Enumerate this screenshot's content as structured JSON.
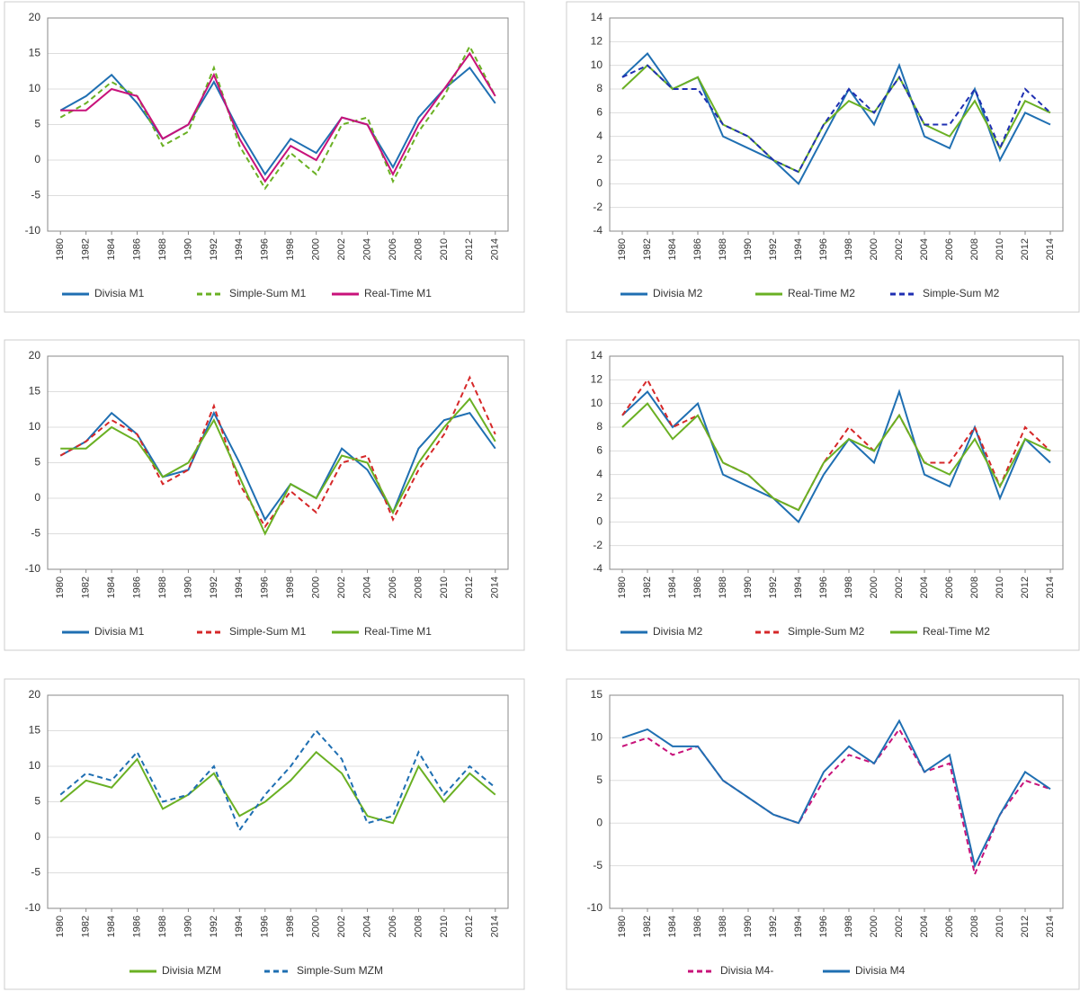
{
  "chart_data": [
    {
      "type": "line",
      "xlim": [
        1979,
        2015
      ],
      "xticks": [
        1980,
        1982,
        1984,
        1986,
        1988,
        1990,
        1992,
        1994,
        1996,
        1998,
        2000,
        2002,
        2004,
        2006,
        2008,
        2010,
        2012,
        2014
      ],
      "ylim": [
        -10,
        20
      ],
      "yticks": [
        -10,
        -5,
        0,
        5,
        10,
        15,
        20
      ],
      "x": [
        1980,
        1982,
        1984,
        1986,
        1988,
        1990,
        1992,
        1994,
        1996,
        1998,
        2000,
        2002,
        2004,
        2006,
        2008,
        2010,
        2012,
        2014
      ],
      "series": [
        {
          "name": "Divisia M1",
          "color": "#1f6fb2",
          "style": "solid",
          "values": [
            7,
            9,
            12,
            8,
            3,
            5,
            11,
            4,
            -2,
            3,
            1,
            6,
            5,
            -1,
            6,
            10,
            13,
            8
          ]
        },
        {
          "name": "Simple-Sum M1",
          "color": "#6ab023",
          "style": "dashed",
          "values": [
            6,
            8,
            11,
            9,
            2,
            4,
            13,
            2,
            -4,
            1,
            -2,
            5,
            6,
            -3,
            4,
            9,
            16,
            9
          ]
        },
        {
          "name": "Real-Time M1",
          "color": "#c8127a",
          "style": "solid",
          "values": [
            7,
            7,
            10,
            9,
            3,
            5,
            12,
            3,
            -3,
            2,
            0,
            6,
            5,
            -2,
            5,
            10,
            15,
            9
          ]
        }
      ]
    },
    {
      "type": "line",
      "xlim": [
        1979,
        2015
      ],
      "xticks": [
        1980,
        1982,
        1984,
        1986,
        1988,
        1990,
        1992,
        1994,
        1996,
        1998,
        2000,
        2002,
        2004,
        2006,
        2008,
        2010,
        2012,
        2014
      ],
      "ylim": [
        -4,
        14
      ],
      "yticks": [
        -4,
        -2,
        0,
        2,
        4,
        6,
        8,
        10,
        12,
        14
      ],
      "x": [
        1980,
        1982,
        1984,
        1986,
        1988,
        1990,
        1992,
        1994,
        1996,
        1998,
        2000,
        2002,
        2004,
        2006,
        2008,
        2010,
        2012,
        2014
      ],
      "series": [
        {
          "name": "Divisia M2",
          "color": "#1f6fb2",
          "style": "solid",
          "values": [
            9,
            11,
            8,
            9,
            4,
            3,
            2,
            0,
            4,
            8,
            5,
            10,
            4,
            3,
            8,
            2,
            6,
            5
          ]
        },
        {
          "name": "Real-Time M2",
          "color": "#6ab023",
          "style": "solid",
          "values": [
            8,
            10,
            8,
            9,
            5,
            4,
            2,
            1,
            5,
            7,
            6,
            9,
            5,
            4,
            7,
            3,
            7,
            6
          ]
        },
        {
          "name": "Simple-Sum M2",
          "color": "#1f2fb2",
          "style": "dashed",
          "values": [
            9,
            10,
            8,
            8,
            5,
            4,
            2,
            1,
            5,
            8,
            6,
            9,
            5,
            5,
            8,
            3,
            8,
            6
          ]
        }
      ]
    },
    {
      "type": "line",
      "xlim": [
        1979,
        2015
      ],
      "xticks": [
        1980,
        1982,
        1984,
        1986,
        1988,
        1990,
        1992,
        1994,
        1996,
        1998,
        2000,
        2002,
        2004,
        2006,
        2008,
        2010,
        2012,
        2014
      ],
      "ylim": [
        -10,
        20
      ],
      "yticks": [
        -10,
        -5,
        0,
        5,
        10,
        15,
        20
      ],
      "x": [
        1980,
        1982,
        1984,
        1986,
        1988,
        1990,
        1992,
        1994,
        1996,
        1998,
        2000,
        2002,
        2004,
        2006,
        2008,
        2010,
        2012,
        2014
      ],
      "series": [
        {
          "name": "Divisia M1",
          "color": "#1f6fb2",
          "style": "solid",
          "values": [
            6,
            8,
            12,
            9,
            3,
            4,
            12,
            5,
            -3,
            2,
            0,
            7,
            4,
            -2,
            7,
            11,
            12,
            7
          ]
        },
        {
          "name": "Simple-Sum M1",
          "color": "#d62728",
          "style": "dashed",
          "values": [
            6,
            8,
            11,
            9,
            2,
            4,
            13,
            2,
            -4,
            1,
            -2,
            5,
            6,
            -3,
            4,
            9,
            17,
            9
          ]
        },
        {
          "name": "Real-Time M1",
          "color": "#6ab023",
          "style": "solid",
          "values": [
            7,
            7,
            10,
            8,
            3,
            5,
            11,
            3,
            -5,
            2,
            0,
            6,
            5,
            -2,
            5,
            10,
            14,
            8
          ]
        }
      ]
    },
    {
      "type": "line",
      "xlim": [
        1979,
        2015
      ],
      "xticks": [
        1980,
        1982,
        1984,
        1986,
        1988,
        1990,
        1992,
        1994,
        1996,
        1998,
        2000,
        2002,
        2004,
        2006,
        2008,
        2010,
        2012,
        2014
      ],
      "ylim": [
        -4,
        14
      ],
      "yticks": [
        -4,
        -2,
        0,
        2,
        4,
        6,
        8,
        10,
        12,
        14
      ],
      "x": [
        1980,
        1982,
        1984,
        1986,
        1988,
        1990,
        1992,
        1994,
        1996,
        1998,
        2000,
        2002,
        2004,
        2006,
        2008,
        2010,
        2012,
        2014
      ],
      "series": [
        {
          "name": "Divisia M2",
          "color": "#1f6fb2",
          "style": "solid",
          "values": [
            9,
            11,
            8,
            10,
            4,
            3,
            2,
            0,
            4,
            7,
            5,
            11,
            4,
            3,
            8,
            2,
            7,
            5
          ]
        },
        {
          "name": "Simple-Sum M2",
          "color": "#d62728",
          "style": "dashed",
          "values": [
            9,
            12,
            8,
            9,
            5,
            4,
            2,
            1,
            5,
            8,
            6,
            9,
            5,
            5,
            8,
            3,
            8,
            6
          ]
        },
        {
          "name": "Real-Time M2",
          "color": "#6ab023",
          "style": "solid",
          "values": [
            8,
            10,
            7,
            9,
            5,
            4,
            2,
            1,
            5,
            7,
            6,
            9,
            5,
            4,
            7,
            3,
            7,
            6
          ]
        }
      ]
    },
    {
      "type": "line",
      "xlim": [
        1979,
        2015
      ],
      "xticks": [
        1980,
        1982,
        1984,
        1986,
        1988,
        1990,
        1992,
        1994,
        1996,
        1998,
        2000,
        2002,
        2004,
        2006,
        2008,
        2010,
        2012,
        2014
      ],
      "ylim": [
        -10,
        20
      ],
      "yticks": [
        -10,
        -5,
        0,
        5,
        10,
        15,
        20
      ],
      "x": [
        1980,
        1982,
        1984,
        1986,
        1988,
        1990,
        1992,
        1994,
        1996,
        1998,
        2000,
        2002,
        2004,
        2006,
        2008,
        2010,
        2012,
        2014
      ],
      "series": [
        {
          "name": "Divisia MZM",
          "color": "#6ab023",
          "style": "solid",
          "values": [
            5,
            8,
            7,
            11,
            4,
            6,
            9,
            3,
            5,
            8,
            12,
            9,
            3,
            2,
            10,
            5,
            9,
            6
          ]
        },
        {
          "name": "Simple-Sum MZM",
          "color": "#1f6fb2",
          "style": "dashed",
          "values": [
            6,
            9,
            8,
            12,
            5,
            6,
            10,
            1,
            6,
            10,
            15,
            11,
            2,
            3,
            12,
            6,
            10,
            7
          ]
        }
      ]
    },
    {
      "type": "line",
      "xlim": [
        1979,
        2015
      ],
      "xticks": [
        1980,
        1982,
        1984,
        1986,
        1988,
        1990,
        1992,
        1994,
        1996,
        1998,
        2000,
        2002,
        2004,
        2006,
        2008,
        2010,
        2012,
        2014
      ],
      "ylim": [
        -10,
        15
      ],
      "yticks": [
        -10,
        -5,
        0,
        5,
        10,
        15
      ],
      "x": [
        1980,
        1982,
        1984,
        1986,
        1988,
        1990,
        1992,
        1994,
        1996,
        1998,
        2000,
        2002,
        2004,
        2006,
        2008,
        2010,
        2012,
        2014
      ],
      "series": [
        {
          "name": "Divisia M4-",
          "color": "#c8127a",
          "style": "dashed",
          "values": [
            9,
            10,
            8,
            9,
            5,
            3,
            1,
            0,
            5,
            8,
            7,
            11,
            6,
            7,
            -6,
            1,
            5,
            4
          ]
        },
        {
          "name": "Divisia M4",
          "color": "#1f6fb2",
          "style": "solid",
          "values": [
            10,
            11,
            9,
            9,
            5,
            3,
            1,
            0,
            6,
            9,
            7,
            12,
            6,
            8,
            -5,
            1,
            6,
            4
          ]
        }
      ]
    }
  ]
}
